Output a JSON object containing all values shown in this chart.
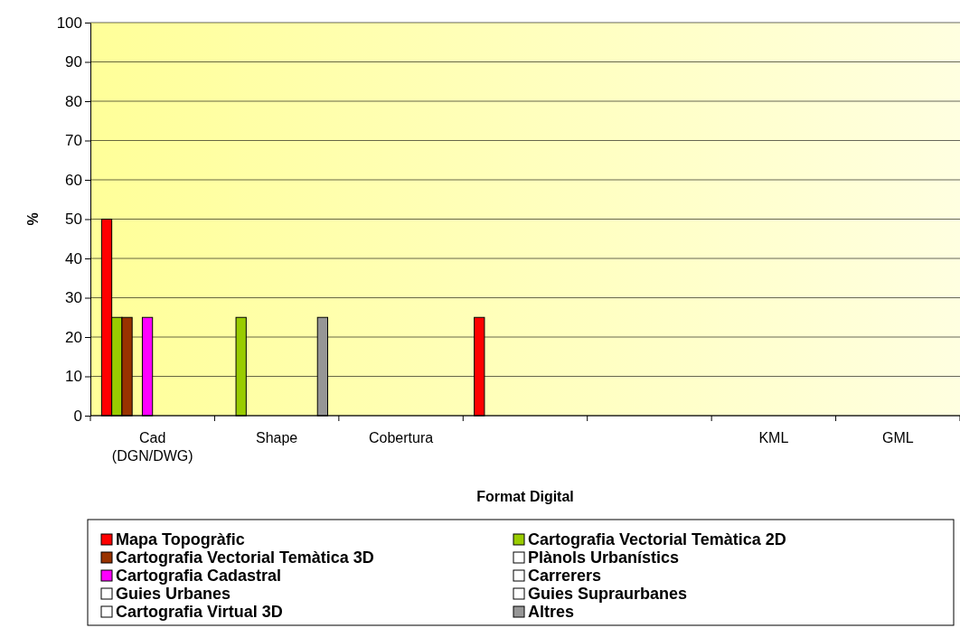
{
  "chart_data": {
    "type": "bar",
    "xlabel": "Format Digital",
    "ylabel": "%",
    "categories": [
      "Cad\n(DGN/DWG)",
      "Shape",
      "Cobertura",
      null,
      null,
      "KML",
      "GML"
    ],
    "series": [
      {
        "name": "Mapa Topogràfic",
        "color": "#ff0000",
        "values": [
          50,
          0,
          0,
          25,
          0,
          0,
          0
        ]
      },
      {
        "name": "Cartografia Vectorial Temàtica 2D",
        "color": "#99cc00",
        "values": [
          25,
          25,
          0,
          0,
          0,
          0,
          0
        ]
      },
      {
        "name": "Cartografia Vectorial Temàtica 3D",
        "color": "#993300",
        "values": [
          25,
          0,
          0,
          0,
          0,
          0,
          0
        ]
      },
      {
        "name": "Plànols Urbanístics",
        "color": "#ffffff",
        "values": [
          0,
          0,
          0,
          0,
          0,
          0,
          0
        ]
      },
      {
        "name": "Cartografia Cadastral",
        "color": "#ff00ff",
        "values": [
          25,
          0,
          0,
          0,
          0,
          0,
          0
        ]
      },
      {
        "name": "Carrerers",
        "color": "#ffffff",
        "values": [
          0,
          0,
          0,
          0,
          0,
          0,
          0
        ]
      },
      {
        "name": "Guies Urbanes",
        "color": "#ffffff",
        "values": [
          0,
          0,
          0,
          0,
          0,
          0,
          0
        ]
      },
      {
        "name": "Guies Supraurbanes",
        "color": "#ffffff",
        "values": [
          0,
          0,
          0,
          0,
          0,
          0,
          0
        ]
      },
      {
        "name": "Cartografia Virtual 3D",
        "color": "#ffffff",
        "values": [
          0,
          0,
          0,
          0,
          0,
          0,
          0
        ]
      },
      {
        "name": "Altres",
        "color": "#969696",
        "values": [
          0,
          25,
          0,
          0,
          0,
          0,
          0
        ]
      }
    ],
    "ylim": [
      0,
      100
    ],
    "yticks": [
      0,
      10,
      20,
      30,
      40,
      50,
      60,
      70,
      80,
      90,
      100
    ],
    "grid": "y",
    "legend": "bottom"
  }
}
